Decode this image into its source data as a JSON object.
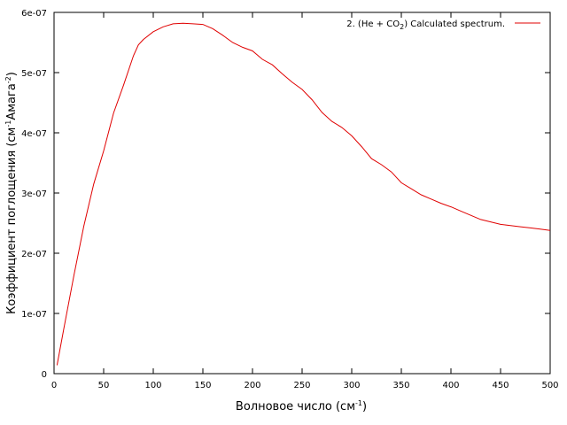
{
  "chart_data": {
    "type": "line",
    "title": "",
    "xlabel": {
      "text": "Волновое число (см",
      "sup": "-1",
      "close": ")"
    },
    "ylabel": {
      "text": "Коэффициент поглощения (см",
      "sup1": "-1",
      "mid": "Амага",
      "sup2": "-2",
      "close": ")"
    },
    "xlim": [
      0,
      500
    ],
    "ylim": [
      0,
      6e-07
    ],
    "x_ticks": [
      0,
      50,
      100,
      150,
      200,
      250,
      300,
      350,
      400,
      450,
      500
    ],
    "x_tick_labels": [
      "0",
      "50",
      "100",
      "150",
      "200",
      "250",
      "300",
      "350",
      "400",
      "450",
      "500"
    ],
    "y_ticks": [
      0,
      1e-07,
      2e-07,
      3e-07,
      4e-07,
      5e-07,
      6e-07
    ],
    "y_tick_labels": [
      "0",
      "1e-07",
      "2e-07",
      "3e-07",
      "4e-07",
      "5e-07",
      "6e-07"
    ],
    "grid": false,
    "legend": {
      "placement": "top-right",
      "text_before": "2. (He + CO",
      "sub": "2",
      "text_after": ") Calculated spectrum."
    },
    "colors": {
      "series": "#e00000",
      "axis": "#000000",
      "background": "#ffffff"
    },
    "series": [
      {
        "x": [
          3,
          10,
          20,
          30,
          40,
          50,
          60,
          70,
          80,
          85,
          90,
          100,
          110,
          120,
          130,
          140,
          150,
          160,
          170,
          180,
          190,
          200,
          210,
          220,
          230,
          240,
          250,
          260,
          270,
          280,
          290,
          300,
          310,
          320,
          330,
          340,
          350,
          360,
          370,
          380,
          390,
          400,
          410,
          420,
          430,
          440,
          450,
          460,
          470,
          480,
          490,
          500
        ],
        "y": [
          1.4e-08,
          7.6e-08,
          1.63e-07,
          2.45e-07,
          3.15e-07,
          3.7e-07,
          4.33e-07,
          4.79e-07,
          5.28e-07,
          5.46e-07,
          5.55e-07,
          5.68e-07,
          5.76e-07,
          5.81e-07,
          5.82e-07,
          5.81e-07,
          5.8e-07,
          5.73e-07,
          5.62e-07,
          5.5e-07,
          5.42e-07,
          5.36e-07,
          5.22e-07,
          5.13e-07,
          4.98e-07,
          4.84e-07,
          4.72e-07,
          4.55e-07,
          4.34e-07,
          4.19e-07,
          4.09e-07,
          3.95e-07,
          3.77e-07,
          3.57e-07,
          3.47e-07,
          3.35e-07,
          3.17e-07,
          3.07e-07,
          2.97e-07,
          2.9e-07,
          2.83e-07,
          2.77e-07,
          2.7e-07,
          2.63e-07,
          2.56e-07,
          2.52e-07,
          2.48e-07,
          2.46e-07,
          2.44e-07,
          2.42e-07,
          2.4e-07,
          2.38e-07
        ]
      }
    ]
  }
}
